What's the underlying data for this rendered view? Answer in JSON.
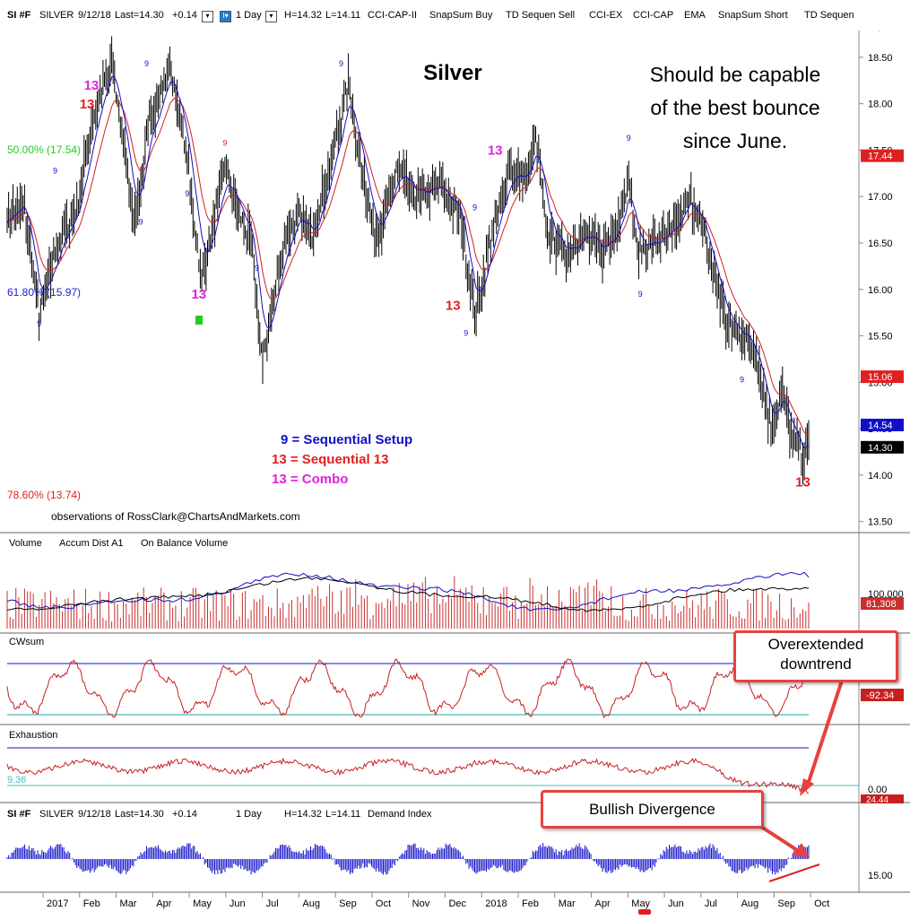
{
  "header": {
    "symbol": "SI #F",
    "name": "SILVER",
    "date": "9/12/18",
    "last": "Last=14.30",
    "change": "+0.14",
    "interval": "1 Day",
    "high": "H=14.32",
    "low": "L=14.11",
    "studies": [
      "CCI-CAP-II",
      "SnapSum Buy",
      "TD Sequen Sell",
      "CCI-EX",
      "CCI-CAP",
      "EMA",
      "SnapSum Short",
      "TD Sequen"
    ]
  },
  "annotations": {
    "title": "Silver",
    "commentary": [
      "Should be capable",
      "of the best bounce",
      "since June."
    ],
    "legend": [
      {
        "text": "9 = Sequential Setup",
        "color": "#1010c8"
      },
      {
        "text": "13 = Sequential 13",
        "color": "#e02020"
      },
      {
        "text": "13 = Combo",
        "color": "#e020e0"
      }
    ],
    "credit": "observations of RossClark@ChartsAndMarkets.com",
    "fib_levels": [
      {
        "label": "50.00% (17.54)",
        "color": "#22cc22"
      },
      {
        "label": "61.80% (15.97)",
        "color": "#2222cc"
      },
      {
        "label": "78.60% (13.74)",
        "color": "#e02020"
      }
    ],
    "callout_downtrend": [
      "Overextended",
      "downtrend"
    ],
    "callout_divergence": "Bullish Divergence"
  },
  "panels": {
    "volume": {
      "labels": [
        "Volume",
        "Accum Dist A1",
        "On Balance Volume"
      ],
      "readouts": [
        "100,000",
        "81,308"
      ]
    },
    "cwsum": {
      "label": "CWsum",
      "readout": "-92.34"
    },
    "exhaustion": {
      "label": "Exhaustion",
      "left_value": "9.36",
      "readouts": [
        "0.00",
        "24.44"
      ]
    },
    "demand": {
      "labels": [
        "SI #F",
        "SILVER",
        "9/12/18",
        "Last=14.30",
        "+0.14",
        "1 Day",
        "H=14.32",
        "L=14.11",
        "Demand Index"
      ],
      "readout": "15.00"
    }
  },
  "chart_data": {
    "type": "candlestick",
    "title": "Silver",
    "y_axis_ticks": [
      "18.50",
      "18.00",
      "17.50",
      "17.00",
      "16.50",
      "16.00",
      "15.50",
      "15.00",
      "14.50",
      "14.00",
      "13.50"
    ],
    "ylim": [
      13.4,
      18.75
    ],
    "price_tags": [
      {
        "value": 17.44,
        "label": "17.44",
        "bg": "#e02020",
        "fg": "#fff"
      },
      {
        "value": 15.06,
        "label": "15.06",
        "bg": "#e02020",
        "fg": "#fff"
      },
      {
        "value": 14.54,
        "label": "14.54",
        "bg": "#1010c8",
        "fg": "#fff"
      },
      {
        "value": 14.3,
        "label": "14.30",
        "bg": "#000",
        "fg": "#fff"
      }
    ],
    "x_labels": [
      "2017",
      "Feb",
      "Mar",
      "Apr",
      "May",
      "Jun",
      "Jul",
      "Aug",
      "Sep",
      "Oct",
      "Nov",
      "Dec",
      "2018",
      "Feb",
      "Mar",
      "Apr",
      "May",
      "Jun",
      "Jul",
      "Aug",
      "Sep",
      "Oct"
    ],
    "price_path": [
      {
        "i": 0,
        "v": 16.8
      },
      {
        "i": 12,
        "v": 16.9
      },
      {
        "i": 22,
        "v": 15.7
      },
      {
        "i": 35,
        "v": 16.5
      },
      {
        "i": 48,
        "v": 16.9
      },
      {
        "i": 60,
        "v": 17.9
      },
      {
        "i": 72,
        "v": 18.45
      },
      {
        "i": 88,
        "v": 16.7
      },
      {
        "i": 98,
        "v": 17.8
      },
      {
        "i": 112,
        "v": 18.4
      },
      {
        "i": 122,
        "v": 17.6
      },
      {
        "i": 134,
        "v": 16.1
      },
      {
        "i": 150,
        "v": 17.3
      },
      {
        "i": 160,
        "v": 16.8
      },
      {
        "i": 168,
        "v": 16.5
      },
      {
        "i": 176,
        "v": 15.2
      },
      {
        "i": 190,
        "v": 16.5
      },
      {
        "i": 200,
        "v": 16.8
      },
      {
        "i": 210,
        "v": 16.6
      },
      {
        "i": 222,
        "v": 17.3
      },
      {
        "i": 235,
        "v": 18.2
      },
      {
        "i": 246,
        "v": 17.1
      },
      {
        "i": 256,
        "v": 16.5
      },
      {
        "i": 268,
        "v": 17.3
      },
      {
        "i": 282,
        "v": 17.0
      },
      {
        "i": 298,
        "v": 17.1
      },
      {
        "i": 312,
        "v": 16.8
      },
      {
        "i": 322,
        "v": 15.7
      },
      {
        "i": 334,
        "v": 16.6
      },
      {
        "i": 346,
        "v": 17.3
      },
      {
        "i": 358,
        "v": 17.2
      },
      {
        "i": 364,
        "v": 17.6
      },
      {
        "i": 372,
        "v": 16.6
      },
      {
        "i": 384,
        "v": 16.4
      },
      {
        "i": 398,
        "v": 16.6
      },
      {
        "i": 410,
        "v": 16.4
      },
      {
        "i": 420,
        "v": 16.7
      },
      {
        "i": 428,
        "v": 17.2
      },
      {
        "i": 434,
        "v": 16.4
      },
      {
        "i": 446,
        "v": 16.5
      },
      {
        "i": 458,
        "v": 16.6
      },
      {
        "i": 470,
        "v": 17.0
      },
      {
        "i": 476,
        "v": 16.8
      },
      {
        "i": 486,
        "v": 16.2
      },
      {
        "i": 496,
        "v": 15.6
      },
      {
        "i": 508,
        "v": 15.5
      },
      {
        "i": 516,
        "v": 15.3
      },
      {
        "i": 526,
        "v": 14.5
      },
      {
        "i": 534,
        "v": 14.9
      },
      {
        "i": 540,
        "v": 14.4
      },
      {
        "i": 548,
        "v": 14.2
      },
      {
        "i": 552,
        "v": 14.3
      }
    ],
    "bars": 553,
    "setup_9_labels": [
      {
        "i": 22,
        "price": 15.6,
        "color": "#1010c8"
      },
      {
        "i": 33,
        "price": 17.25,
        "color": "#1010c8"
      },
      {
        "i": 92,
        "price": 16.7,
        "color": "#1010c8"
      },
      {
        "i": 96,
        "price": 18.4,
        "color": "#1010c8"
      },
      {
        "i": 124,
        "price": 17.0,
        "color": "#1010c8"
      },
      {
        "i": 150,
        "price": 17.55,
        "color": "#e02020"
      },
      {
        "i": 172,
        "price": 16.2,
        "color": "#1010c8"
      },
      {
        "i": 230,
        "price": 18.4,
        "color": "#1010c8"
      },
      {
        "i": 316,
        "price": 15.5,
        "color": "#1010c8"
      },
      {
        "i": 322,
        "price": 16.85,
        "color": "#1010c8"
      },
      {
        "i": 428,
        "price": 17.6,
        "color": "#1010c8"
      },
      {
        "i": 436,
        "price": 15.92,
        "color": "#1010c8"
      },
      {
        "i": 506,
        "price": 15.0,
        "color": "#1010c8"
      }
    ],
    "seq_13_labels": [
      {
        "i": 58,
        "price": 18.15,
        "color": "#e020e0"
      },
      {
        "i": 55,
        "price": 17.95,
        "color": "#e02020"
      },
      {
        "i": 132,
        "price": 15.9,
        "color": "#e020e0"
      },
      {
        "i": 307,
        "price": 15.78,
        "color": "#e02020"
      },
      {
        "i": 336,
        "price": 17.45,
        "color": "#e020e0"
      },
      {
        "i": 548,
        "price": 13.88,
        "color": "#e02020"
      }
    ],
    "volume_ticks": [
      "100,000"
    ],
    "demand_index_ticks": [
      "15.00"
    ]
  }
}
